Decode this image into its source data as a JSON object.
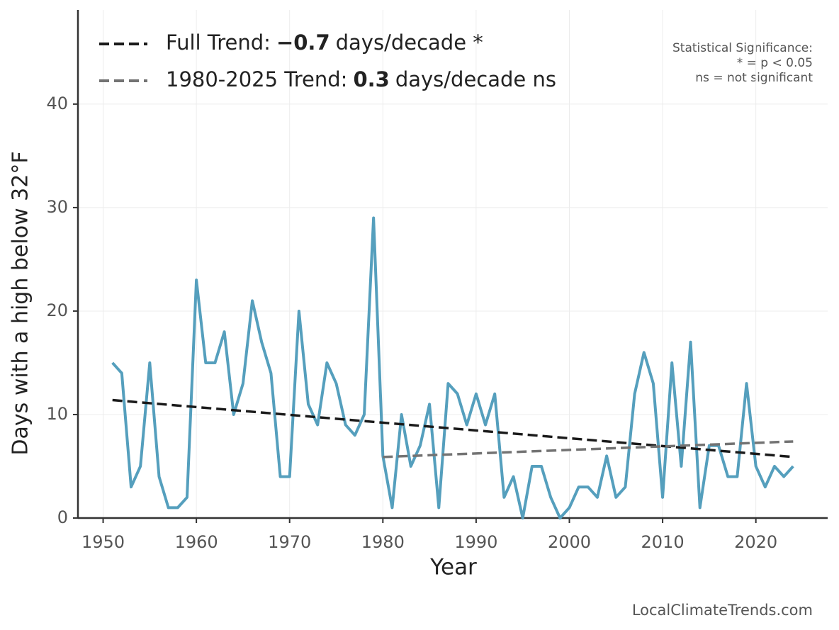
{
  "chart_data": {
    "type": "line",
    "xlabel": "Year",
    "ylabel": "Days with a high below 32°F",
    "xlim": [
      1947.3,
      2027.7
    ],
    "ylim": [
      0,
      49.1
    ],
    "xticks": [
      1950,
      1960,
      1970,
      1980,
      1990,
      2000,
      2010,
      2020
    ],
    "yticks": [
      0,
      10,
      20,
      30,
      40
    ],
    "grid": true,
    "series": [
      {
        "color": "#559fbd",
        "x": [
          1951,
          1952,
          1953,
          1954,
          1955,
          1956,
          1957,
          1958,
          1959,
          1960,
          1961,
          1962,
          1963,
          1964,
          1965,
          1966,
          1967,
          1968,
          1969,
          1970,
          1971,
          1972,
          1973,
          1974,
          1975,
          1976,
          1977,
          1978,
          1979,
          1980,
          1981,
          1982,
          1983,
          1984,
          1985,
          1986,
          1987,
          1988,
          1989,
          1990,
          1991,
          1992,
          1993,
          1994,
          1995,
          1996,
          1997,
          1998,
          1999,
          2000,
          2001,
          2002,
          2003,
          2004,
          2005,
          2006,
          2007,
          2008,
          2009,
          2010,
          2011,
          2012,
          2013,
          2014,
          2015,
          2016,
          2017,
          2018,
          2019,
          2020,
          2021,
          2022,
          2023,
          2024
        ],
        "values": [
          15,
          14,
          3,
          5,
          15,
          4,
          1,
          1,
          2,
          23,
          15,
          15,
          18,
          10,
          13,
          21,
          17,
          14,
          4,
          4,
          20,
          11,
          9,
          15,
          13,
          9,
          8,
          10,
          29,
          6,
          1,
          10,
          5,
          7,
          11,
          1,
          13,
          12,
          9,
          12,
          9,
          12,
          2,
          4,
          0,
          5,
          5,
          2,
          0,
          1,
          3,
          3,
          2,
          6,
          2,
          3,
          12,
          16,
          13,
          2,
          15,
          5,
          17,
          1,
          7,
          7,
          4,
          4,
          13,
          5,
          3,
          5,
          4,
          5
        ]
      },
      {
        "name_parts": [
          "Full Trend:",
          "−0.7",
          "days/decade *"
        ],
        "color": "#1a1a1a",
        "dashed": true,
        "x": [
          1951,
          2024
        ],
        "values": [
          11.4,
          5.9
        ]
      },
      {
        "name_parts": [
          "1980-2025 Trend:",
          "0.3",
          "days/decade ns"
        ],
        "color": "#737373",
        "dashed": true,
        "x": [
          1980,
          2024
        ],
        "values": [
          5.9,
          7.4
        ]
      }
    ],
    "annotations": [
      "Statistical Significance:",
      "* = p < 0.05",
      "ns = not significant"
    ],
    "source": "LocalClimateTrends.com"
  }
}
